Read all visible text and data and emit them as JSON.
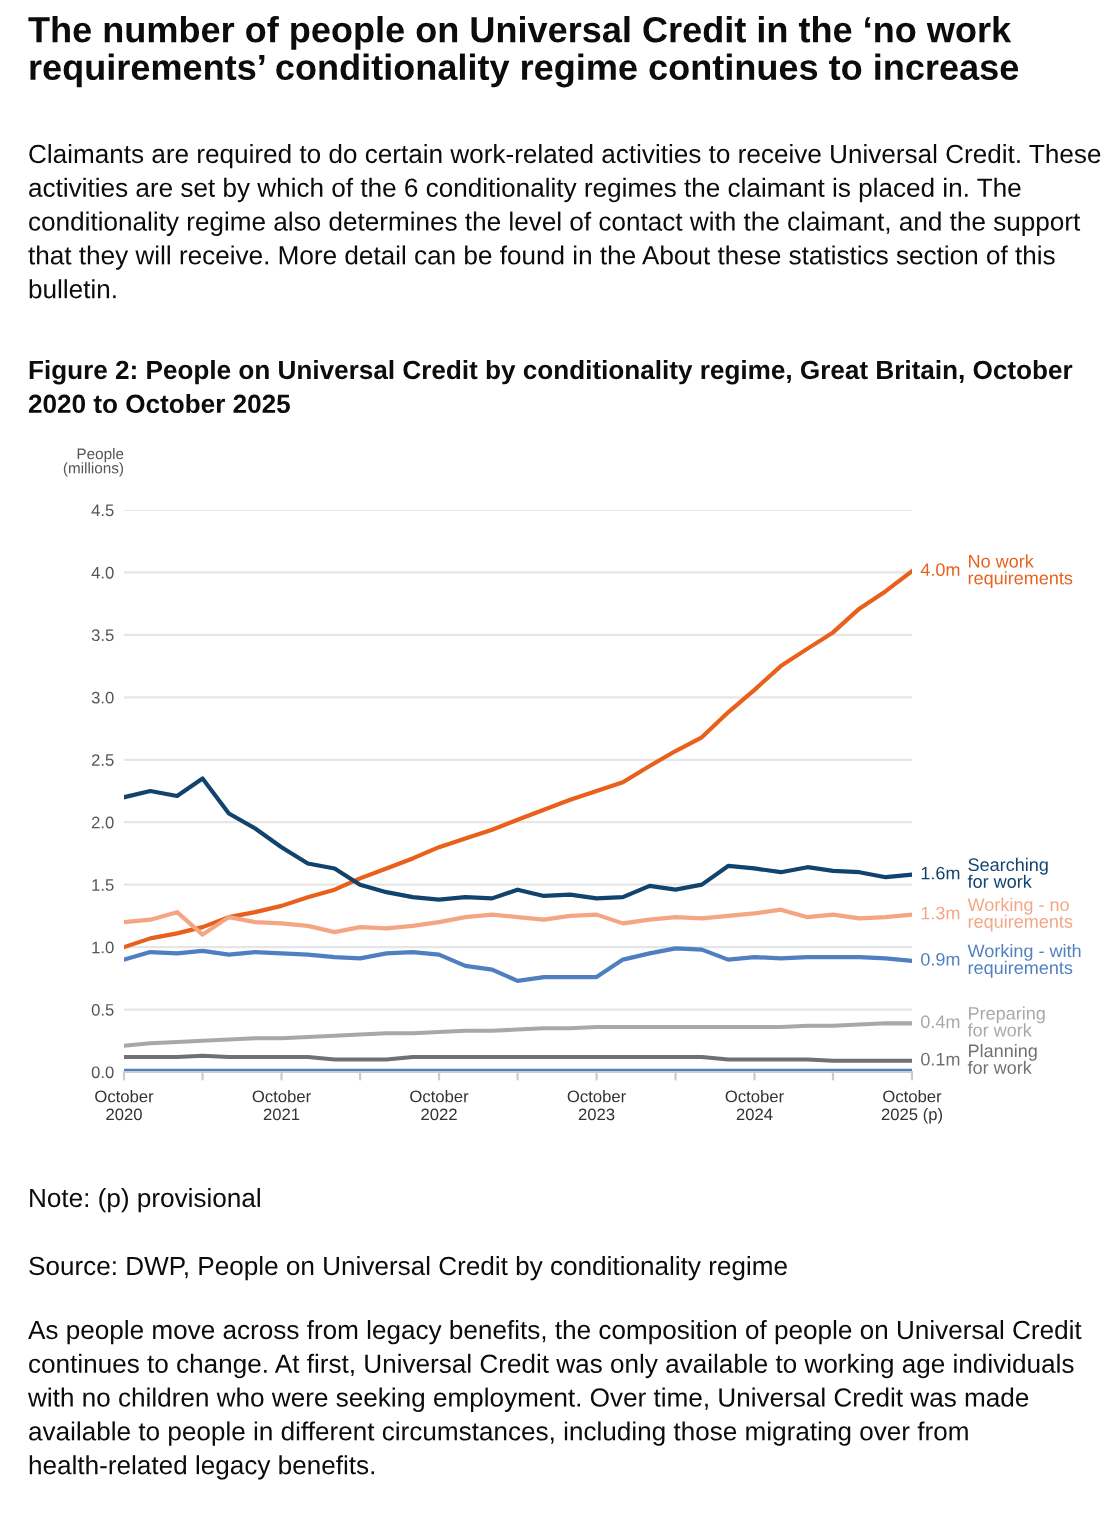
{
  "chart_data": {
    "type": "line",
    "title": "The number of people on Universal Credit in the ‘no work requirements’ conditionality regime continues to increase",
    "subtitle": "Claimants are required to do certain work-related activities to receive Universal Credit. These activities are set by which of the 6 conditionality regimes the claimant is placed in. The conditionality regime also determines the level of contact with the claimant, and the support that they will receive. More detail can be found in the About these statistics section of this bulletin.",
    "annotations": [
      "Figure 2: People on Universal Credit by conditionality regime, Great Britain, October 2020 to October 2025",
      "Note: (p) provisional",
      "Source: DWP, People on Universal Credit by conditionality regime",
      "As people move across from legacy benefits, the composition of people on Universal Credit continues to change. At first, Universal Credit was only available to working age individuals with no children who were seeking employment. Over time, Universal Credit was made available to people in different circumstances, including those migrating over from health-related legacy benefits."
    ],
    "ylabel": "People\n(millions)",
    "x": [
      "2020-10",
      "2020-12",
      "2021-02",
      "2021-04",
      "2021-06",
      "2021-08",
      "2021-10",
      "2021-12",
      "2022-02",
      "2022-04",
      "2022-06",
      "2022-08",
      "2022-10",
      "2022-12",
      "2023-02",
      "2023-04",
      "2023-06",
      "2023-08",
      "2023-10",
      "2023-12",
      "2024-02",
      "2024-04",
      "2024-06",
      "2024-08",
      "2024-10",
      "2024-12",
      "2025-02",
      "2025-04",
      "2025-06",
      "2025-08",
      "2025-10"
    ],
    "xlim": [
      "2020-10",
      "2025-10"
    ],
    "xticks": [
      {
        "value": "2020-10",
        "label": "October\n2020"
      },
      {
        "value": "2021-04",
        "label": null
      },
      {
        "value": "2021-10",
        "label": "October\n2021"
      },
      {
        "value": "2022-04",
        "label": null
      },
      {
        "value": "2022-10",
        "label": "October\n2022"
      },
      {
        "value": "2023-04",
        "label": null
      },
      {
        "value": "2023-10",
        "label": "October\n2023"
      },
      {
        "value": "2024-04",
        "label": null
      },
      {
        "value": "2024-10",
        "label": "October\n2024"
      },
      {
        "value": "2025-04",
        "label": null
      },
      {
        "value": "2025-10",
        "label": "October\n2025 (p)"
      }
    ],
    "ylim": [
      0,
      4.5
    ],
    "yticks": [
      {
        "value": 0,
        "label": "0.0"
      },
      0.5,
      {
        "value": 1,
        "label": "1.0"
      },
      1.5,
      {
        "value": 2,
        "label": "2.0"
      },
      2.5,
      {
        "value": 3,
        "label": "3.0"
      },
      3.5,
      {
        "value": 4,
        "label": "4.0"
      },
      4.5
    ],
    "grid": "y",
    "legend": false,
    "series": [
      {
        "name": "No work\nrequirements",
        "color": "#e8601c",
        "values": [
          1.0,
          1.07,
          1.11,
          1.16,
          1.24,
          1.28,
          1.33,
          1.4,
          1.46,
          1.55,
          1.63,
          1.71,
          1.8,
          1.87,
          1.94,
          2.02,
          2.1,
          2.18,
          2.25,
          2.32,
          2.45,
          2.57,
          2.68,
          2.88,
          3.06,
          3.25,
          3.39,
          3.52,
          3.71,
          3.85,
          4.01
        ],
        "value_labels": [
          null,
          null,
          null,
          null,
          null,
          null,
          null,
          null,
          null,
          null,
          null,
          null,
          null,
          null,
          null,
          null,
          null,
          null,
          null,
          null,
          null,
          null,
          null,
          null,
          null,
          null,
          null,
          null,
          null,
          null,
          "4.0m"
        ]
      },
      {
        "name": "Searching\nfor work",
        "color": "#12436d",
        "values": [
          2.2,
          2.25,
          2.21,
          2.35,
          2.07,
          1.95,
          1.8,
          1.67,
          1.63,
          1.5,
          1.44,
          1.4,
          1.38,
          1.4,
          1.39,
          1.46,
          1.41,
          1.42,
          1.39,
          1.4,
          1.49,
          1.46,
          1.5,
          1.65,
          1.63,
          1.6,
          1.64,
          1.61,
          1.6,
          1.56,
          1.58
        ],
        "value_labels": [
          null,
          null,
          null,
          null,
          null,
          null,
          null,
          null,
          null,
          null,
          null,
          null,
          null,
          null,
          null,
          null,
          null,
          null,
          null,
          null,
          null,
          null,
          null,
          null,
          null,
          null,
          null,
          null,
          null,
          null,
          "1.6m"
        ]
      },
      {
        "name": "Working - no\nrequirements",
        "color": "#f4a582",
        "values": [
          1.2,
          1.22,
          1.28,
          1.1,
          1.24,
          1.2,
          1.19,
          1.17,
          1.12,
          1.16,
          1.15,
          1.17,
          1.2,
          1.24,
          1.26,
          1.24,
          1.22,
          1.25,
          1.26,
          1.19,
          1.22,
          1.24,
          1.23,
          1.25,
          1.27,
          1.3,
          1.24,
          1.26,
          1.23,
          1.24,
          1.26
        ],
        "value_labels": [
          null,
          null,
          null,
          null,
          null,
          null,
          null,
          null,
          null,
          null,
          null,
          null,
          null,
          null,
          null,
          null,
          null,
          null,
          null,
          null,
          null,
          null,
          null,
          null,
          null,
          null,
          null,
          null,
          null,
          null,
          "1.3m"
        ]
      },
      {
        "name": "Working - with\nrequirements",
        "color": "#4f7fc0",
        "values": [
          0.9,
          0.96,
          0.95,
          0.97,
          0.94,
          0.96,
          0.95,
          0.94,
          0.92,
          0.91,
          0.95,
          0.96,
          0.94,
          0.85,
          0.82,
          0.73,
          0.76,
          0.76,
          0.76,
          0.9,
          0.95,
          0.99,
          0.98,
          0.9,
          0.92,
          0.91,
          0.92,
          0.92,
          0.92,
          0.91,
          0.89
        ],
        "value_labels": [
          null,
          null,
          null,
          null,
          null,
          null,
          null,
          null,
          null,
          null,
          null,
          null,
          null,
          null,
          null,
          null,
          null,
          null,
          null,
          null,
          null,
          null,
          null,
          null,
          null,
          null,
          null,
          null,
          null,
          null,
          "0.9m"
        ]
      },
      {
        "name": "Preparing\nfor work",
        "color": "#a8a8a8",
        "values": [
          0.21,
          0.23,
          0.24,
          0.25,
          0.26,
          0.27,
          0.27,
          0.28,
          0.29,
          0.3,
          0.31,
          0.31,
          0.32,
          0.33,
          0.33,
          0.34,
          0.35,
          0.35,
          0.36,
          0.36,
          0.36,
          0.36,
          0.36,
          0.36,
          0.36,
          0.36,
          0.37,
          0.37,
          0.38,
          0.39,
          0.39
        ],
        "value_labels": [
          null,
          null,
          null,
          null,
          null,
          null,
          null,
          null,
          null,
          null,
          null,
          null,
          null,
          null,
          null,
          null,
          null,
          null,
          null,
          null,
          null,
          null,
          null,
          null,
          null,
          null,
          null,
          null,
          null,
          null,
          "0.4m"
        ]
      },
      {
        "name": "Planning\nfor work",
        "color": "#707070",
        "values": [
          0.12,
          0.12,
          0.12,
          0.13,
          0.12,
          0.12,
          0.12,
          0.12,
          0.1,
          0.1,
          0.1,
          0.12,
          0.12,
          0.12,
          0.12,
          0.12,
          0.12,
          0.12,
          0.12,
          0.12,
          0.12,
          0.12,
          0.12,
          0.1,
          0.1,
          0.1,
          0.1,
          0.09,
          0.09,
          0.09,
          0.09
        ],
        "value_labels": [
          null,
          null,
          null,
          null,
          null,
          null,
          null,
          null,
          null,
          null,
          null,
          null,
          null,
          null,
          null,
          null,
          null,
          null,
          null,
          null,
          null,
          null,
          null,
          null,
          null,
          null,
          null,
          null,
          null,
          null,
          "0.1m"
        ]
      },
      {
        "color": "#4f7fc0",
        "values": [
          0.01,
          0.01,
          0.01,
          0.01,
          0.01,
          0.01,
          0.01,
          0.01,
          0.01,
          0.01,
          0.01,
          0.01,
          0.01,
          0.01,
          0.01,
          0.01,
          0.01,
          0.01,
          0.01,
          0.01,
          0.01,
          0.01,
          0.01,
          0.01,
          0.01,
          0.01,
          0.01,
          0.01,
          0.01,
          0.01,
          0.01
        ]
      }
    ]
  }
}
